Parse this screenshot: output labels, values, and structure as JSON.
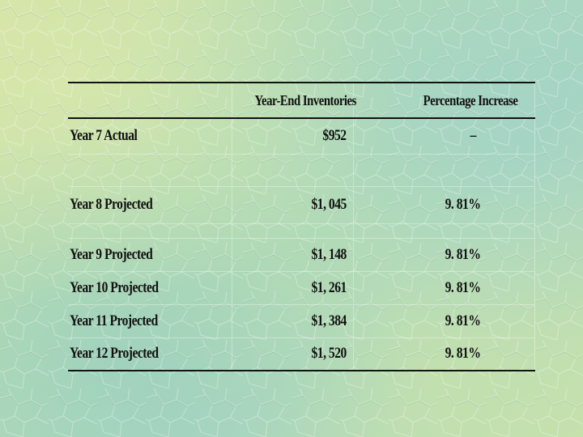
{
  "table": {
    "header": {
      "label": "",
      "inventories": "Year-End Inventories",
      "increase": "Percentage Increase"
    },
    "rows": [
      {
        "label": "Year 7 Actual",
        "inventories": "$952",
        "increase": "–"
      },
      {
        "label": "Year 8 Projected",
        "inventories": "$1, 045",
        "increase": "9. 81%"
      },
      {
        "label": "Year 9 Projected",
        "inventories": "$1, 148",
        "increase": "9. 81%"
      },
      {
        "label": "Year 10 Projected",
        "inventories": "$1, 261",
        "increase": "9. 81%"
      },
      {
        "label": "Year 11 Projected",
        "inventories": "$1, 384",
        "increase": "9. 81%"
      },
      {
        "label": "Year 12 Projected",
        "inventories": "$1, 520",
        "increase": "9. 81%"
      }
    ]
  }
}
